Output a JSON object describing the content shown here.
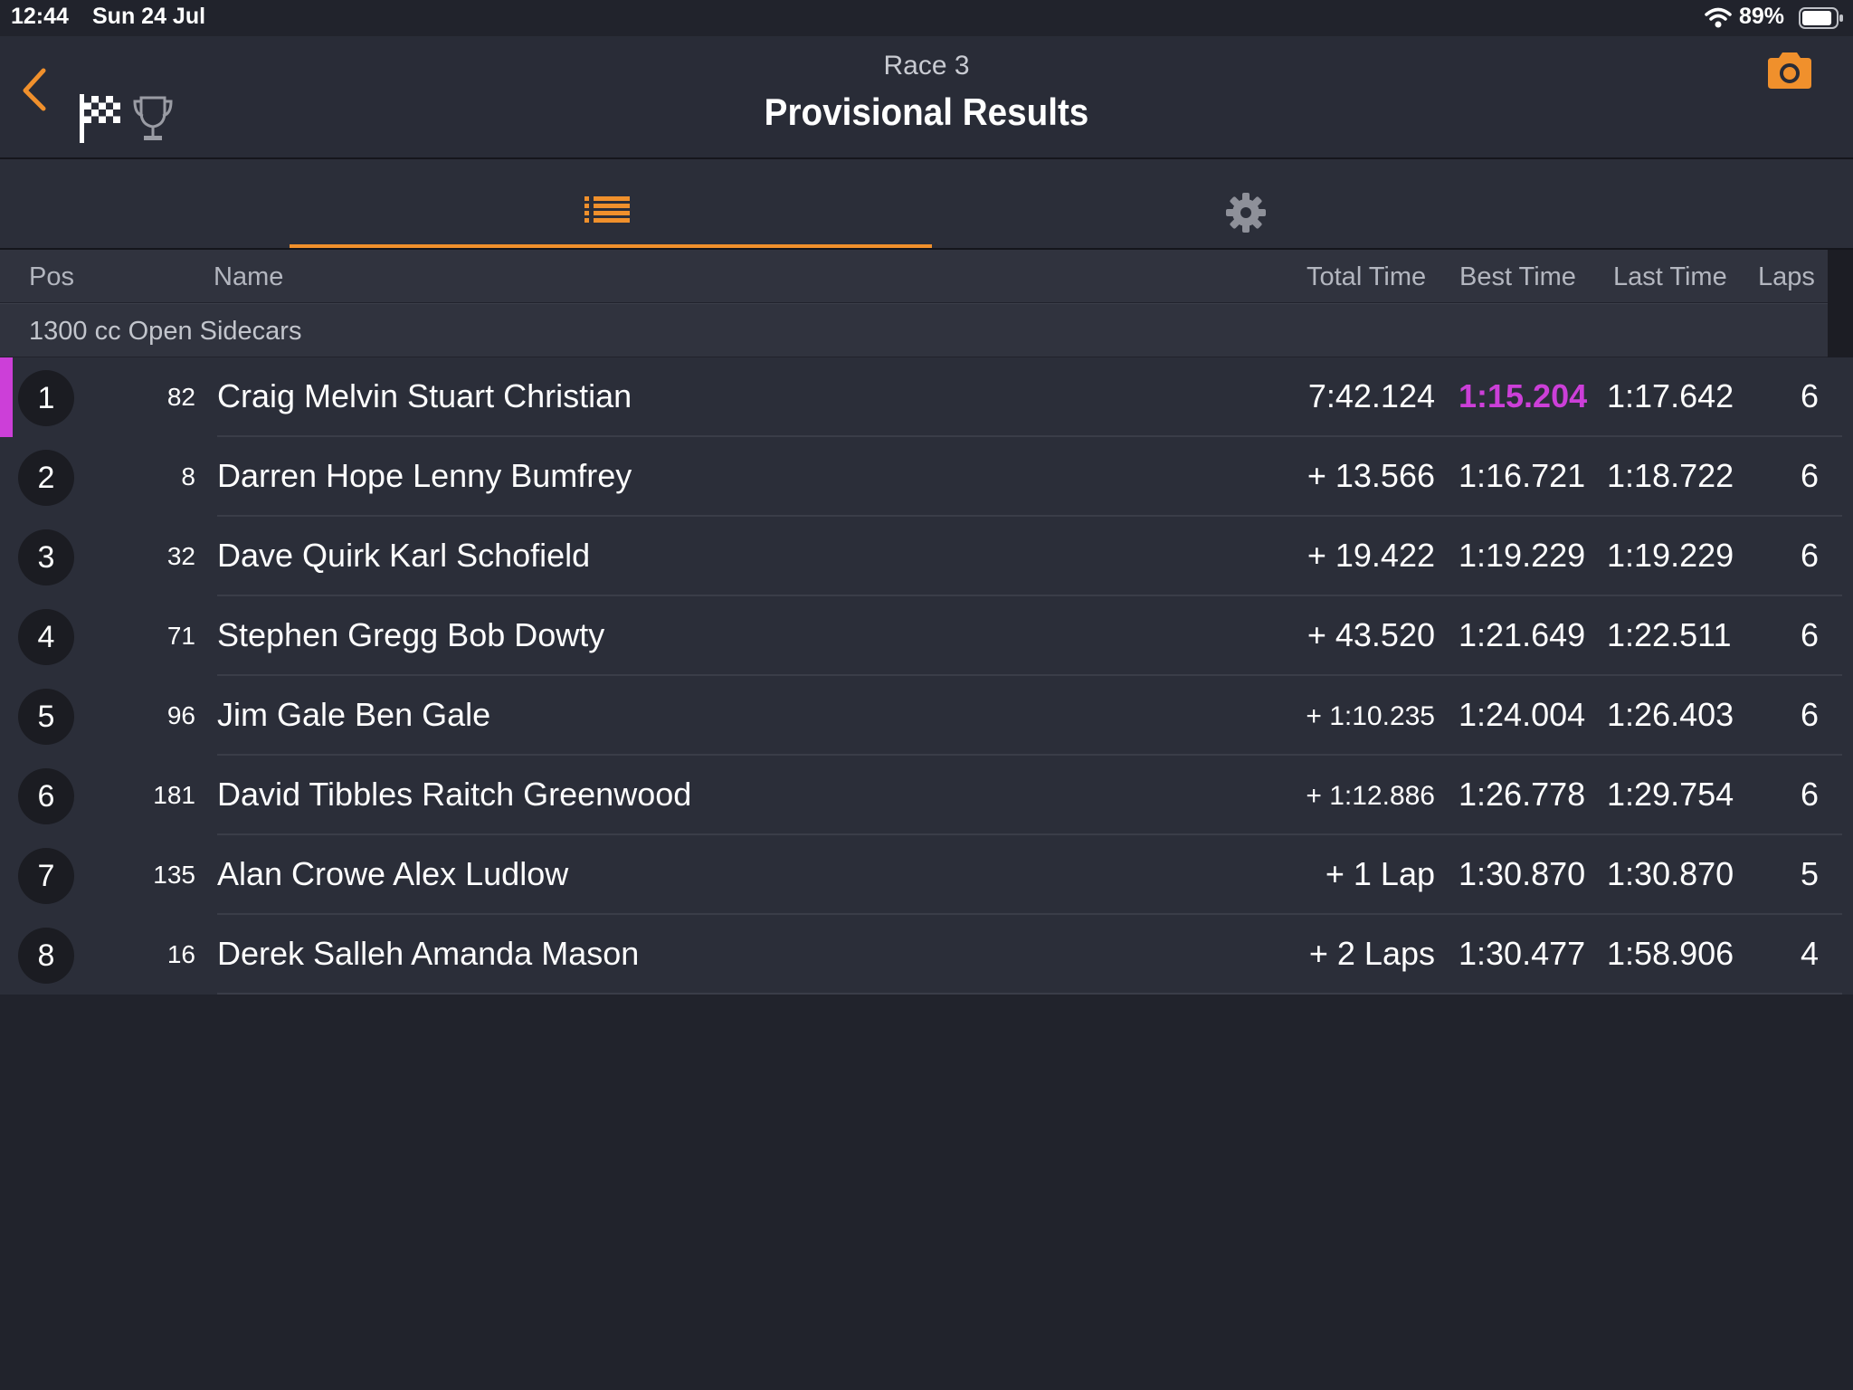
{
  "status_bar": {
    "time": "12:44",
    "date": "Sun 24 Jul",
    "battery": "89%",
    "battery_level": 0.89,
    "wifi_icon": "wifi-icon",
    "battery_icon": "battery-icon"
  },
  "header": {
    "race_name": "Race 3",
    "title": "Provisional Results",
    "accent_color": "#f0902c",
    "icons": [
      "back-chevron-icon",
      "checkered-flag-icon",
      "trophy-icon",
      "camera-icon"
    ]
  },
  "tabs": [
    {
      "icon": "list-icon",
      "selected": true
    },
    {
      "icon": "gear-icon",
      "selected": false
    }
  ],
  "table": {
    "columns": {
      "pos": "Pos",
      "name": "Name",
      "total_time": "Total Time",
      "best_time": "Best Time",
      "last_time": "Last Time",
      "laps": "Laps"
    },
    "class_name": "1300 cc Open Sidecars",
    "fastest_lap_color": "#cc3fd8",
    "rows": [
      {
        "pos": "1",
        "num": "82",
        "name": "Craig Melvin Stuart Christian",
        "total": "7:42.124",
        "best": "1:15.204",
        "last": "1:17.642",
        "laps": "6",
        "fastest": true
      },
      {
        "pos": "2",
        "num": "8",
        "name": "Darren Hope Lenny Bumfrey",
        "total": "+ 13.566",
        "best": "1:16.721",
        "last": "1:18.722",
        "laps": "6"
      },
      {
        "pos": "3",
        "num": "32",
        "name": "Dave Quirk Karl Schofield",
        "total": "+ 19.422",
        "best": "1:19.229",
        "last": "1:19.229",
        "laps": "6"
      },
      {
        "pos": "4",
        "num": "71",
        "name": "Stephen Gregg Bob Dowty",
        "total": "+ 43.520",
        "best": "1:21.649",
        "last": "1:22.511",
        "laps": "6"
      },
      {
        "pos": "5",
        "num": "96",
        "name": "Jim Gale Ben Gale",
        "total": "+ 1:10.235",
        "best": "1:24.004",
        "last": "1:26.403",
        "laps": "6"
      },
      {
        "pos": "6",
        "num": "181",
        "name": "David Tibbles Raitch Greenwood",
        "total": "+ 1:12.886",
        "best": "1:26.778",
        "last": "1:29.754",
        "laps": "6"
      },
      {
        "pos": "7",
        "num": "135",
        "name": "Alan Crowe Alex Ludlow",
        "total": "+ 1 Lap",
        "best": "1:30.870",
        "last": "1:30.870",
        "laps": "5"
      },
      {
        "pos": "8",
        "num": "16",
        "name": "Derek Salleh Amanda Mason",
        "total": "+ 2 Laps",
        "best": "1:30.477",
        "last": "1:58.906",
        "laps": "4"
      }
    ]
  }
}
